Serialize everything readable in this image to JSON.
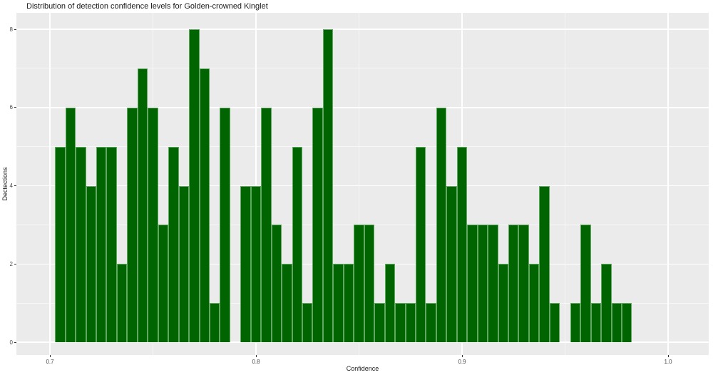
{
  "chart_data": {
    "type": "bar",
    "subtype": "histogram",
    "title": "Distribution of detection confidence levels for Golden-crowned Kinglet",
    "xlabel": "Confidence",
    "ylabel": "Dectections",
    "legend": "none",
    "grid": "white major and minor gridlines on gray panel",
    "x_ticks": [
      "0.7",
      "0.8",
      "0.9",
      "1.0"
    ],
    "y_ticks": [
      "0",
      "2",
      "4",
      "6",
      "8"
    ],
    "x_minor_ticks": [
      0.75,
      0.85,
      0.95
    ],
    "y_minor_ticks": [
      1,
      3,
      5,
      7
    ],
    "xlim": [
      0.6917,
      1.0277
    ],
    "ylim": [
      -0.4,
      8.4
    ],
    "bin_start": 0.7025,
    "bin_width": 0.005,
    "values": [
      5,
      6,
      5,
      4,
      5,
      5,
      2,
      6,
      7,
      6,
      3,
      5,
      4,
      8,
      7,
      1,
      6,
      0,
      4,
      4,
      6,
      3,
      2,
      5,
      1,
      6,
      8,
      2,
      2,
      3,
      3,
      1,
      2,
      1,
      1,
      5,
      1,
      6,
      4,
      5,
      3,
      3,
      3,
      2,
      3,
      3,
      2,
      4,
      1,
      0,
      1,
      3,
      1,
      2,
      1,
      1
    ]
  },
  "colors": {
    "bar_fill": "#006400",
    "bar_edge": "#62a862",
    "panel_bg": "#ebebeb",
    "gridline": "#ffffff",
    "tick_text": "#4d4d4d",
    "tick_mark": "#333333",
    "title_text": "#1a1a1a",
    "page_bg": "#ffffff"
  }
}
